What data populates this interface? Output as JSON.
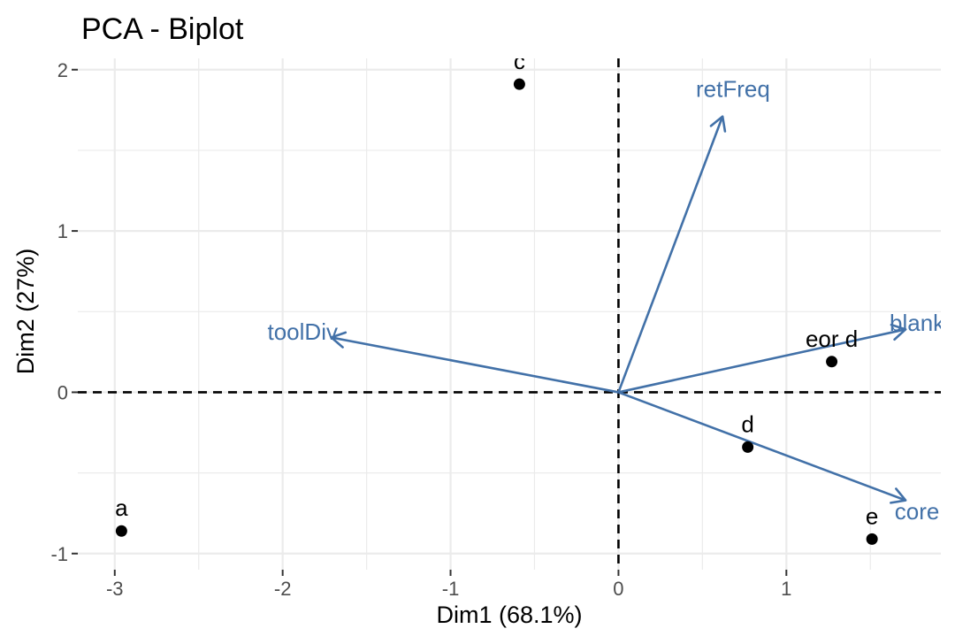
{
  "chart_data": {
    "type": "scatter",
    "title": "PCA - Biplot",
    "xlabel": "Dim1 (68.1%)",
    "ylabel": "Dim2 (27%)",
    "xlim": [
      -3.22,
      1.92
    ],
    "ylim": [
      -1.1,
      2.07
    ],
    "x_ticks": [
      -3,
      -2,
      -1,
      0,
      1
    ],
    "x_tick_labels": [
      "-3",
      "-2",
      "-1",
      "0",
      "1"
    ],
    "y_ticks": [
      -1,
      0,
      1,
      2
    ],
    "y_tick_labels": [
      "-1",
      "0",
      "1",
      "2"
    ],
    "grid": true,
    "reference_lines": {
      "x": 0,
      "y": 0,
      "style": "dashed"
    },
    "points": [
      {
        "label": "a",
        "x": -2.96,
        "y": -0.86
      },
      {
        "label": "c",
        "x": -0.59,
        "y": 1.91
      },
      {
        "label": "eor d",
        "x": 1.27,
        "y": 0.19
      },
      {
        "label": "d",
        "x": 0.77,
        "y": -0.34
      },
      {
        "label": "e",
        "x": 1.51,
        "y": -0.91
      }
    ],
    "vectors": [
      {
        "label": "retFreq",
        "x": 0.62,
        "y": 1.71
      },
      {
        "label": "toolDiv",
        "x": -1.71,
        "y": 0.34
      },
      {
        "label": "blankFre",
        "x": 1.71,
        "y": 0.39
      },
      {
        "label": "coreFre",
        "x": 1.71,
        "y": -0.67
      }
    ],
    "colors": {
      "points": "#000000",
      "vectors": "#4271a8",
      "grid": "#ebebeb",
      "ref_lines": "#000000"
    }
  }
}
